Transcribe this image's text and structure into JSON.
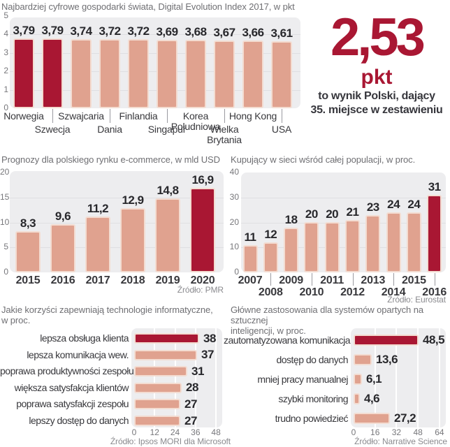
{
  "colors": {
    "accent": "#a91733",
    "bar": "#e0a28f",
    "bar_border": "#f3dcd1",
    "panel": "#ededef",
    "grid": "#dfdfe2",
    "title_gray": "#6f6f73",
    "axis_gray": "#77777b",
    "source_gray": "#8a8a8e",
    "value_dark": "#28282c",
    "label_dark": "#38383c"
  },
  "callout": {
    "value": "2,53",
    "unit": "pkt",
    "caption": [
      "to wynik Polski, dający",
      "35. miejsce w zestawieniu"
    ]
  },
  "chart_data": [
    {
      "id": "digital_index",
      "type": "bar",
      "title": "Najbardziej cyfrowe gospodarki świata, Digital Evolution Index 2017, w pkt",
      "categories": [
        "Norwegia",
        "Szwecja",
        "Szwajcaria",
        "Dania",
        "Finlandia",
        "Singapur",
        "Korea Południowa",
        "Wielka Brytania",
        "Hong Kong",
        "USA"
      ],
      "values": [
        3.79,
        3.79,
        3.74,
        3.72,
        3.72,
        3.69,
        3.68,
        3.67,
        3.66,
        3.61
      ],
      "value_labels": [
        "3,79",
        "3,79",
        "3,74",
        "3,72",
        "3,72",
        "3,69",
        "3,68",
        "3,67",
        "3,66",
        "3,61"
      ],
      "highlight": [
        0,
        1
      ],
      "ylim": [
        0,
        5
      ],
      "yticks": [
        0,
        1,
        2,
        3,
        4,
        5
      ],
      "source": ""
    },
    {
      "id": "ecommerce",
      "type": "bar",
      "title": "Prognozy dla polskiego rynku e-commerce, w mld USD",
      "categories": [
        "2015",
        "2016",
        "2017",
        "2018",
        "2019",
        "2020"
      ],
      "values": [
        8.3,
        9.6,
        11.2,
        12.9,
        14.8,
        16.9
      ],
      "value_labels": [
        "8,3",
        "9,6",
        "11,2",
        "12,9",
        "14,8",
        "16,9"
      ],
      "highlight": [
        5
      ],
      "ylim": [
        0,
        20
      ],
      "yticks": [
        0,
        5,
        10,
        15,
        20
      ],
      "source": "Źródło: PMR"
    },
    {
      "id": "online_buyers",
      "type": "bar",
      "title": "Kupujący w sieci wśród całej populacji, w proc.",
      "categories": [
        "2007",
        "2008",
        "2009",
        "2010",
        "2011",
        "2012",
        "2013",
        "2014",
        "2015",
        "2016"
      ],
      "values": [
        11,
        12,
        18,
        20,
        20,
        21,
        23,
        24,
        24,
        31
      ],
      "value_labels": [
        "11",
        "12",
        "18",
        "20",
        "20",
        "21",
        "23",
        "24",
        "24",
        "31"
      ],
      "highlight": [
        9
      ],
      "ylim": [
        0,
        40
      ],
      "yticks": [
        0,
        10,
        20,
        30,
        40
      ],
      "source": "Źródło: Eurostat"
    },
    {
      "id": "it_benefits",
      "type": "hbar",
      "title": "Jakie korzyści zapewniają technologie informatyczne, w proc.",
      "title_lines": [
        "Jakie korzyści zapewniają technologie informatyczne,",
        "w proc."
      ],
      "categories": [
        "lepsza obsługa klienta",
        "lepsza komunikacja wew.",
        "poprawa produktywności zespołu",
        "większa satysfakcja klientów",
        "poprawa satysfakcji zespołu",
        "lepszy dostęp do danych"
      ],
      "values": [
        38,
        37,
        31,
        28,
        27,
        27
      ],
      "value_labels": [
        "38",
        "37",
        "31",
        "28",
        "27",
        "27"
      ],
      "highlight": [
        0
      ],
      "xlim": [
        0,
        48
      ],
      "xticks": [
        0,
        12,
        24,
        36,
        48
      ],
      "source": "Źródło: Ipsos MORI dla Microsoft"
    },
    {
      "id": "ai_uses",
      "type": "hbar",
      "title": "Główne zastosowania dla systemów opartych na sztucznej inteligencji, w proc.",
      "title_lines": [
        "Główne zastosowania dla systemów opartych na sztucznej",
        "inteligencji, w proc."
      ],
      "categories": [
        "zautomatyzowana komunikacja",
        "dostęp do danych",
        "mniej pracy manualnej",
        "szybki monitoring",
        "trudno powiedzieć"
      ],
      "values": [
        48.5,
        13.6,
        6.1,
        4.6,
        27.2
      ],
      "value_labels": [
        "48,5",
        "13,6",
        "6,1",
        "4,6",
        "27,2"
      ],
      "highlight": [
        0
      ],
      "xlim": [
        0,
        64
      ],
      "xticks": [
        0,
        16,
        32,
        48,
        64
      ],
      "source": "Źródło: Narrative Science"
    }
  ]
}
